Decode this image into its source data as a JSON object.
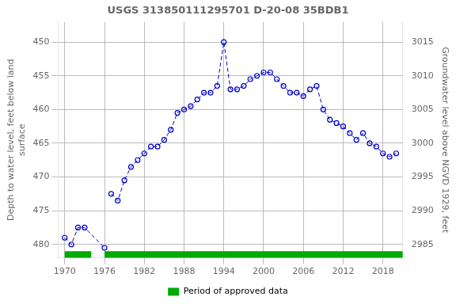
{
  "chart_data": {
    "type": "line",
    "title": "USGS 313850111295701 D-20-08 35BDB1",
    "y_label": "Depth to water level, feet below land\nsurface",
    "y2_label": "Groundwater level above NGVD 1929, feet",
    "xlim": [
      1969,
      2021
    ],
    "xticks": [
      1970,
      1976,
      1982,
      1988,
      1994,
      2000,
      2006,
      2012,
      2018
    ],
    "ylim": [
      482,
      447
    ],
    "yticks": [
      450,
      455,
      460,
      465,
      470,
      475,
      480
    ],
    "y2lim": [
      2983,
      3018
    ],
    "y2ticks": [
      2985,
      2990,
      2995,
      3000,
      3005,
      3010,
      3015
    ],
    "grid": true,
    "legend": "bottom",
    "series": [
      {
        "color": "#0000cc",
        "marker": "o",
        "line_style": "dashed",
        "x": [
          1970,
          1971,
          1972,
          1973,
          1976
        ],
        "values": [
          479.0,
          480.0,
          477.5,
          477.5,
          480.5
        ]
      },
      {
        "color": "#0000cc",
        "marker": "o",
        "line_style": "dashed",
        "x": [
          1977,
          1978,
          1979,
          1980,
          1981,
          1982,
          1983,
          1984,
          1985,
          1986,
          1987,
          1988,
          1989,
          1990,
          1991,
          1992,
          1993,
          1994,
          1995,
          1996,
          1997,
          1998,
          1999,
          2000,
          2001,
          2002,
          2003,
          2004,
          2005,
          2006,
          2007,
          2008,
          2009,
          2010,
          2011,
          2012,
          2013,
          2014,
          2015,
          2016,
          2017,
          2018,
          2019,
          2020
        ],
        "values": [
          472.5,
          473.5,
          470.5,
          468.5,
          467.5,
          466.5,
          465.5,
          465.5,
          464.5,
          463.0,
          460.5,
          460.0,
          459.5,
          458.5,
          457.5,
          457.5,
          456.5,
          450.0,
          457.0,
          457.0,
          456.5,
          455.5,
          455.0,
          454.5,
          454.5,
          455.5,
          456.5,
          457.5,
          457.5,
          458.0,
          457.0,
          456.5,
          460.0,
          461.5,
          462.0,
          462.5,
          463.5,
          464.5,
          463.5,
          465.0,
          465.5,
          466.5,
          467.0,
          466.5
        ]
      },
      {
        "name": "Period of approved data",
        "type": "bar",
        "color": "#00aa00",
        "x": [
          [
            1970,
            1974
          ],
          [
            1976,
            2021
          ]
        ],
        "values": [
          [
            481.0,
            482.0
          ],
          [
            481.0,
            482.0
          ]
        ]
      }
    ]
  }
}
